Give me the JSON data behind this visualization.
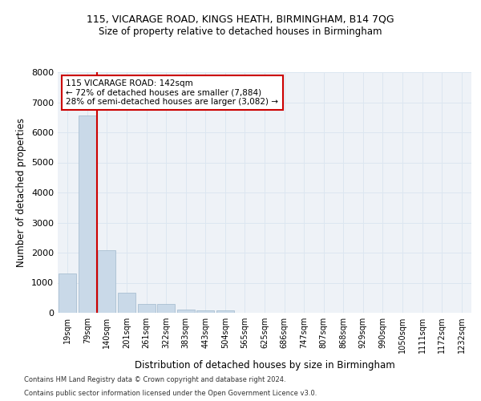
{
  "title1": "115, VICARAGE ROAD, KINGS HEATH, BIRMINGHAM, B14 7QG",
  "title2": "Size of property relative to detached houses in Birmingham",
  "xlabel": "Distribution of detached houses by size in Birmingham",
  "ylabel": "Number of detached properties",
  "categories": [
    "19sqm",
    "79sqm",
    "140sqm",
    "201sqm",
    "261sqm",
    "322sqm",
    "383sqm",
    "443sqm",
    "504sqm",
    "565sqm",
    "625sqm",
    "686sqm",
    "747sqm",
    "807sqm",
    "868sqm",
    "929sqm",
    "990sqm",
    "1050sqm",
    "1111sqm",
    "1172sqm",
    "1232sqm"
  ],
  "values": [
    1300,
    6550,
    2080,
    680,
    300,
    290,
    110,
    70,
    70,
    0,
    0,
    0,
    0,
    0,
    0,
    0,
    0,
    0,
    0,
    0,
    0
  ],
  "bar_color": "#c9d9e8",
  "bar_edge_color": "#a0b8cc",
  "vline_color": "#cc0000",
  "annotation_text": "115 VICARAGE ROAD: 142sqm\n← 72% of detached houses are smaller (7,884)\n28% of semi-detached houses are larger (3,082) →",
  "annotation_box_color": "#ffffff",
  "annotation_box_edge": "#cc0000",
  "grid_color": "#dce6f0",
  "bg_color": "#eef2f7",
  "ylim": [
    0,
    8000
  ],
  "yticks": [
    0,
    1000,
    2000,
    3000,
    4000,
    5000,
    6000,
    7000,
    8000
  ],
  "footer1": "Contains HM Land Registry data © Crown copyright and database right 2024.",
  "footer2": "Contains public sector information licensed under the Open Government Licence v3.0."
}
